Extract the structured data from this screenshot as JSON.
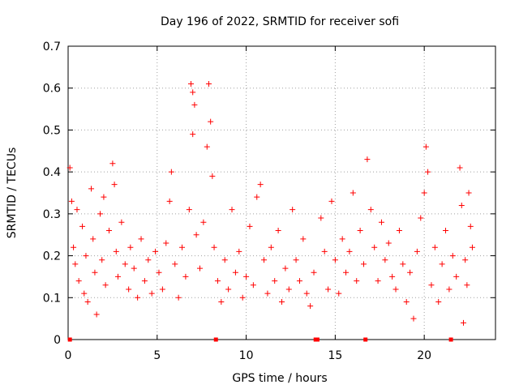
{
  "chart_data": {
    "type": "scatter",
    "title": "Day 196 of 2022, SRMTID for receiver sofi",
    "xlabel": "GPS time / hours",
    "ylabel": "SRMTID / TECUs",
    "xlim": [
      0,
      24
    ],
    "ylim": [
      0,
      0.7
    ],
    "xticks": [
      0,
      5,
      10,
      15,
      20
    ],
    "yticks": [
      0,
      0.1,
      0.2,
      0.3,
      0.4,
      0.5,
      0.6,
      0.7
    ],
    "grid": true,
    "marker": "+",
    "color": "#ff0000",
    "series": [
      {
        "name": "SRMTID",
        "points": [
          [
            0.1,
            0.41
          ],
          [
            0.2,
            0.33
          ],
          [
            0.3,
            0.22
          ],
          [
            0.4,
            0.18
          ],
          [
            0.5,
            0.31
          ],
          [
            0.6,
            0.14
          ],
          [
            0.8,
            0.27
          ],
          [
            0.9,
            0.11
          ],
          [
            1.0,
            0.2
          ],
          [
            1.1,
            0.09
          ],
          [
            1.3,
            0.36
          ],
          [
            1.4,
            0.24
          ],
          [
            1.5,
            0.16
          ],
          [
            1.6,
            0.06
          ],
          [
            1.8,
            0.3
          ],
          [
            1.9,
            0.19
          ],
          [
            2.0,
            0.34
          ],
          [
            2.1,
            0.13
          ],
          [
            2.3,
            0.26
          ],
          [
            2.5,
            0.42
          ],
          [
            2.6,
            0.37
          ],
          [
            2.7,
            0.21
          ],
          [
            2.8,
            0.15
          ],
          [
            3.0,
            0.28
          ],
          [
            3.2,
            0.18
          ],
          [
            3.4,
            0.12
          ],
          [
            3.5,
            0.22
          ],
          [
            3.7,
            0.17
          ],
          [
            3.9,
            0.1
          ],
          [
            4.1,
            0.24
          ],
          [
            4.3,
            0.14
          ],
          [
            4.5,
            0.19
          ],
          [
            4.7,
            0.11
          ],
          [
            4.9,
            0.21
          ],
          [
            5.1,
            0.16
          ],
          [
            5.3,
            0.12
          ],
          [
            5.5,
            0.23
          ],
          [
            5.7,
            0.33
          ],
          [
            5.8,
            0.4
          ],
          [
            6.0,
            0.18
          ],
          [
            6.2,
            0.1
          ],
          [
            6.4,
            0.22
          ],
          [
            6.6,
            0.15
          ],
          [
            6.8,
            0.31
          ],
          [
            6.9,
            0.61
          ],
          [
            7.0,
            0.59
          ],
          [
            7.0,
            0.49
          ],
          [
            7.1,
            0.56
          ],
          [
            7.2,
            0.25
          ],
          [
            7.4,
            0.17
          ],
          [
            7.6,
            0.28
          ],
          [
            7.8,
            0.46
          ],
          [
            7.9,
            0.61
          ],
          [
            8.0,
            0.52
          ],
          [
            8.1,
            0.39
          ],
          [
            8.2,
            0.22
          ],
          [
            8.4,
            0.14
          ],
          [
            8.6,
            0.09
          ],
          [
            8.8,
            0.19
          ],
          [
            9.0,
            0.12
          ],
          [
            9.2,
            0.31
          ],
          [
            9.4,
            0.16
          ],
          [
            9.6,
            0.21
          ],
          [
            9.8,
            0.1
          ],
          [
            10.0,
            0.15
          ],
          [
            10.2,
            0.27
          ],
          [
            10.4,
            0.13
          ],
          [
            10.6,
            0.34
          ],
          [
            10.8,
            0.37
          ],
          [
            11.0,
            0.19
          ],
          [
            11.2,
            0.11
          ],
          [
            11.4,
            0.22
          ],
          [
            11.6,
            0.14
          ],
          [
            11.8,
            0.26
          ],
          [
            12.0,
            0.09
          ],
          [
            12.2,
            0.17
          ],
          [
            12.4,
            0.12
          ],
          [
            12.6,
            0.31
          ],
          [
            12.8,
            0.19
          ],
          [
            13.0,
            0.14
          ],
          [
            13.2,
            0.24
          ],
          [
            13.4,
            0.11
          ],
          [
            13.6,
            0.08
          ],
          [
            13.8,
            0.16
          ],
          [
            14.2,
            0.29
          ],
          [
            14.4,
            0.21
          ],
          [
            14.6,
            0.12
          ],
          [
            14.8,
            0.33
          ],
          [
            15.0,
            0.19
          ],
          [
            15.2,
            0.11
          ],
          [
            15.4,
            0.24
          ],
          [
            15.6,
            0.16
          ],
          [
            15.8,
            0.21
          ],
          [
            16.0,
            0.35
          ],
          [
            16.2,
            0.14
          ],
          [
            16.4,
            0.26
          ],
          [
            16.6,
            0.18
          ],
          [
            16.8,
            0.43
          ],
          [
            17.0,
            0.31
          ],
          [
            17.2,
            0.22
          ],
          [
            17.4,
            0.14
          ],
          [
            17.6,
            0.28
          ],
          [
            17.8,
            0.19
          ],
          [
            18.0,
            0.23
          ],
          [
            18.2,
            0.15
          ],
          [
            18.4,
            0.12
          ],
          [
            18.6,
            0.26
          ],
          [
            18.8,
            0.18
          ],
          [
            19.0,
            0.09
          ],
          [
            19.2,
            0.16
          ],
          [
            19.4,
            0.05
          ],
          [
            19.6,
            0.21
          ],
          [
            19.8,
            0.29
          ],
          [
            20.0,
            0.35
          ],
          [
            20.1,
            0.46
          ],
          [
            20.2,
            0.4
          ],
          [
            20.4,
            0.13
          ],
          [
            20.6,
            0.22
          ],
          [
            20.8,
            0.09
          ],
          [
            21.0,
            0.18
          ],
          [
            21.2,
            0.26
          ],
          [
            21.4,
            0.12
          ],
          [
            21.6,
            0.2
          ],
          [
            21.8,
            0.15
          ],
          [
            22.0,
            0.41
          ],
          [
            22.1,
            0.32
          ],
          [
            22.2,
            0.04
          ],
          [
            22.3,
            0.19
          ],
          [
            22.4,
            0.13
          ],
          [
            22.5,
            0.35
          ],
          [
            22.6,
            0.27
          ],
          [
            22.7,
            0.22
          ]
        ]
      }
    ],
    "zero_markers_x": [
      0.1,
      8.3,
      13.9,
      14.0,
      16.7,
      21.5
    ]
  }
}
